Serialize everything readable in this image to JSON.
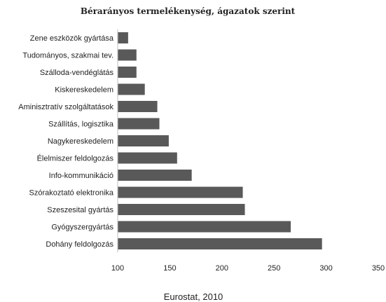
{
  "chart_data": {
    "type": "bar",
    "orientation": "horizontal",
    "title": "Bérarányos termelékenység, ágazatok szerint",
    "categories": [
      "Zene eszközök gyártása",
      "Tudományos, szakmai tev.",
      "Szálloda-vendéglátás",
      "Kiskereskedelem",
      "Aminisztratív szolgáltatások",
      "Szállítás, logisztika",
      "Nagykereskedelem",
      "Élelmiszer feldolgozás",
      "Info-kommunikáció",
      "Szórakoztató elektronika",
      "Szeszesital gyártás",
      "Gyógyszergyártás",
      "Dohány  feldolgozás"
    ],
    "values": [
      110,
      118,
      118,
      126,
      138,
      140,
      149,
      157,
      171,
      220,
      222,
      266,
      296
    ],
    "xlim": [
      100,
      350
    ],
    "xticks": [
      "100",
      "150",
      "200",
      "250",
      "300",
      "350"
    ],
    "xlabel": "",
    "ylabel": "",
    "grid": false,
    "bar_color": "#595959"
  },
  "footer": {
    "source": "Eurostat, 2010"
  }
}
